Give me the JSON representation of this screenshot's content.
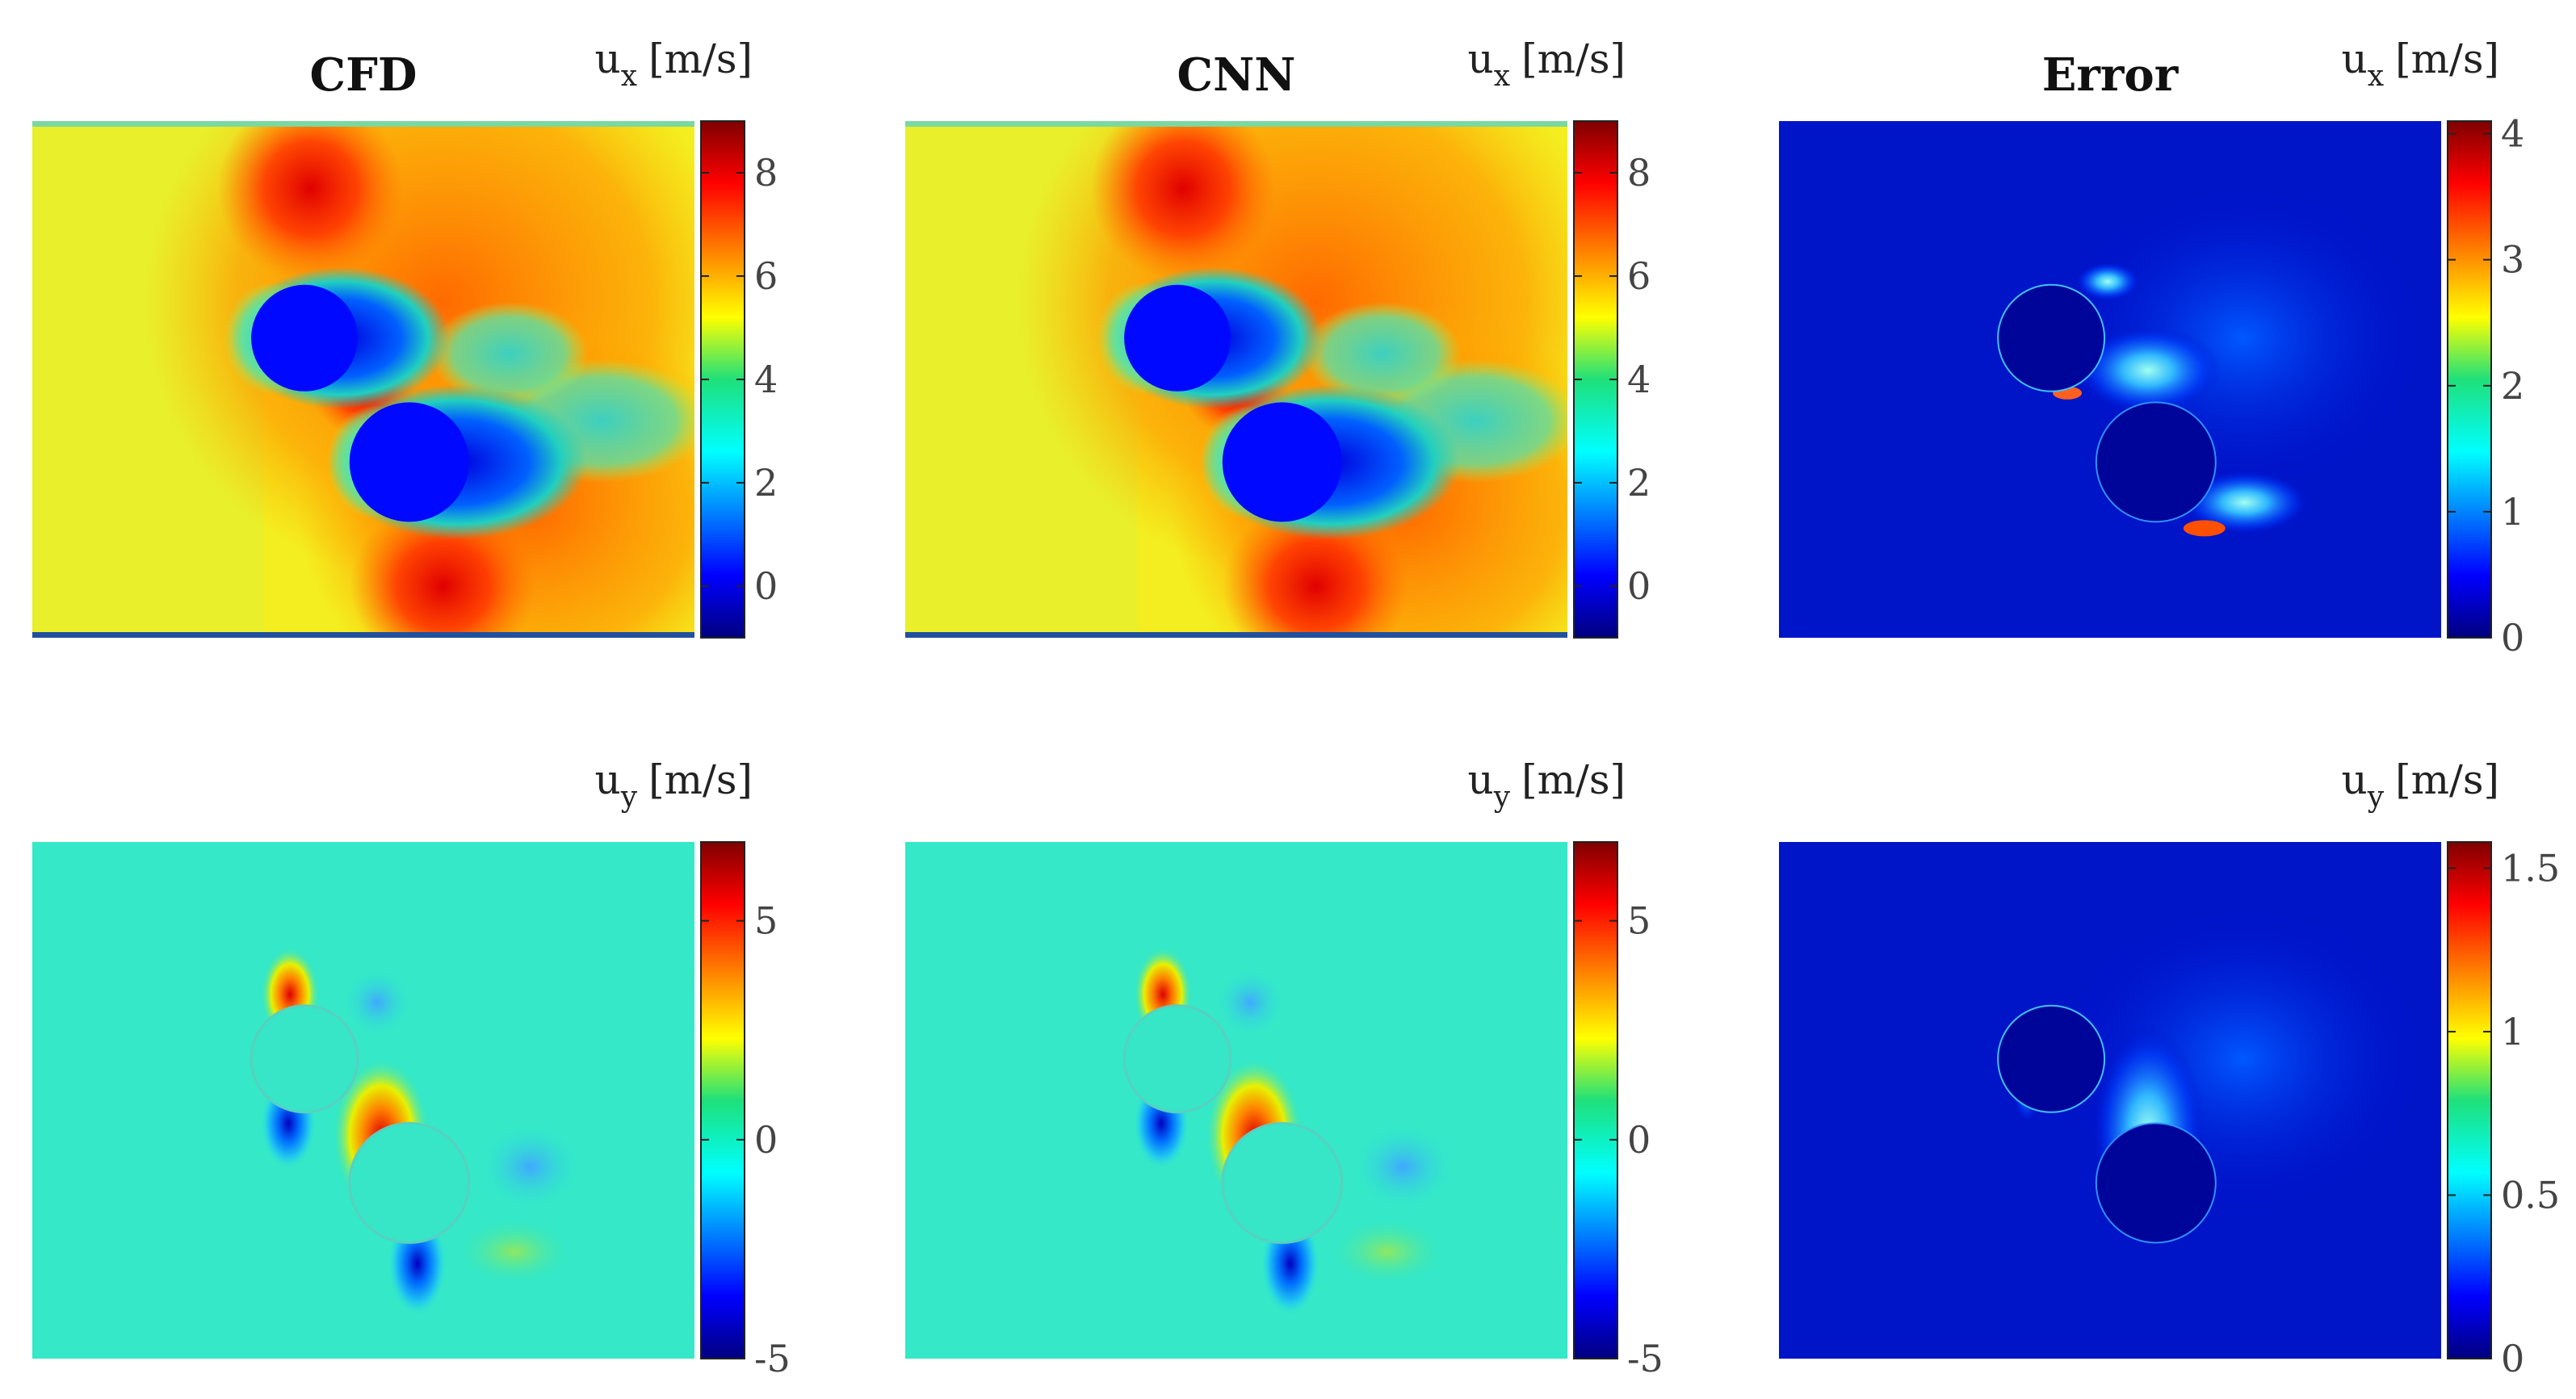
{
  "chart_data": [
    {
      "type": "heatmap",
      "title": "CFD",
      "colorbar_label": {
        "symbol": "u",
        "sub": "x",
        "unit": "[m/s]"
      },
      "colorbar_ticks": [
        "8",
        "6",
        "4",
        "2",
        "0"
      ],
      "clim": [
        -1,
        9
      ],
      "field": "ux"
    },
    {
      "type": "heatmap",
      "title": "CNN",
      "colorbar_label": {
        "symbol": "u",
        "sub": "x",
        "unit": "[m/s]"
      },
      "colorbar_ticks": [
        "8",
        "6",
        "4",
        "2",
        "0"
      ],
      "clim": [
        -1,
        9
      ],
      "field": "ux"
    },
    {
      "type": "heatmap",
      "title": "Error",
      "colorbar_label": {
        "symbol": "u",
        "sub": "x",
        "unit": "[m/s]"
      },
      "colorbar_ticks": [
        "4",
        "3",
        "2",
        "1",
        "0"
      ],
      "clim": [
        0,
        4.1
      ],
      "field": "error-ux"
    },
    {
      "type": "heatmap",
      "title": "",
      "colorbar_label": {
        "symbol": "u",
        "sub": "y",
        "unit": "[m/s]"
      },
      "colorbar_ticks": [
        "5",
        "0",
        "-5"
      ],
      "clim": [
        -5,
        6.8
      ],
      "field": "uy"
    },
    {
      "type": "heatmap",
      "title": "",
      "colorbar_label": {
        "symbol": "u",
        "sub": "y",
        "unit": "[m/s]"
      },
      "colorbar_ticks": [
        "5",
        "0",
        "-5"
      ],
      "clim": [
        -5,
        6.8
      ],
      "field": "uy"
    },
    {
      "type": "heatmap",
      "title": "",
      "colorbar_label": {
        "symbol": "u",
        "sub": "y",
        "unit": "[m/s]"
      },
      "colorbar_ticks": [
        "1.5",
        "1",
        "0.5",
        "0"
      ],
      "clim": [
        0,
        1.58
      ],
      "field": "error-uy"
    }
  ]
}
